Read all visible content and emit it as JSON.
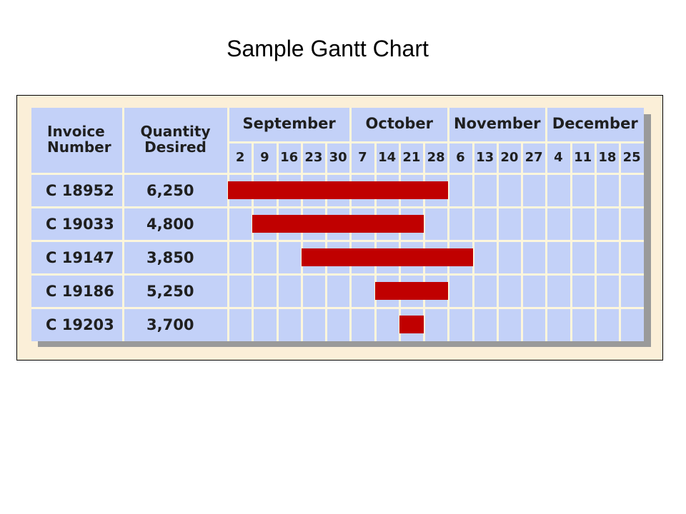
{
  "title": "Sample Gantt Chart",
  "colors": {
    "bar": "#c00000",
    "grid_fill": "#c3d1f8",
    "grid_lines": "#fdf6dc",
    "frame_bg": "#fbefd8"
  },
  "chart_data": {
    "type": "gantt",
    "title": "Sample Gantt Chart",
    "columns": {
      "invoice": "Invoice Number",
      "quantity": "Quantity Desired"
    },
    "months": [
      {
        "name": "September",
        "weeks": [
          "2",
          "9",
          "16",
          "23",
          "30"
        ]
      },
      {
        "name": "October",
        "weeks": [
          "7",
          "14",
          "21",
          "28"
        ]
      },
      {
        "name": "November",
        "weeks": [
          "6",
          "13",
          "20",
          "27"
        ]
      },
      {
        "name": "December",
        "weeks": [
          "4",
          "11",
          "18",
          "25"
        ]
      }
    ],
    "rows": [
      {
        "invoice": "C 18952",
        "quantity": "6,250",
        "start": "2",
        "end": "28"
      },
      {
        "invoice": "C 19033",
        "quantity": "4,800",
        "start": "9",
        "end": "21"
      },
      {
        "invoice": "C 19147",
        "quantity": "3,850",
        "start": "23",
        "end": "6"
      },
      {
        "invoice": "C 19186",
        "quantity": "5,250",
        "start": "14",
        "end": "28"
      },
      {
        "invoice": "C 19203",
        "quantity": "3,700",
        "start": "21",
        "end": "21"
      }
    ],
    "row_week_spans": [
      [
        0,
        8
      ],
      [
        1,
        7
      ],
      [
        3,
        9
      ],
      [
        6,
        8
      ],
      [
        7,
        7
      ]
    ]
  }
}
